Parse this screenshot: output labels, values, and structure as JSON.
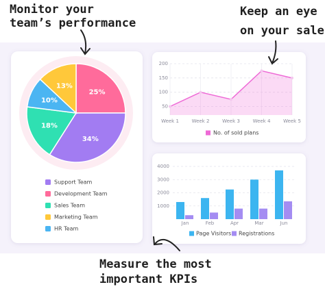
{
  "callouts": [
    {
      "lines": [
        "Monitor your",
        "team’s performance"
      ]
    },
    {
      "lines": [
        "Keep an eye",
        "on your sales"
      ]
    },
    {
      "lines": [
        "Measure the most",
        "important KPIs"
      ]
    }
  ],
  "chart_data": [
    {
      "type": "pie",
      "categories": [
        "Development Team",
        "Support Team",
        "Sales Team",
        "HR Team",
        "Marketing Team"
      ],
      "values": [
        25,
        34,
        18,
        10,
        13
      ],
      "value_labels": [
        "25%",
        "34%",
        "18%",
        "10%",
        "13%"
      ],
      "colors": [
        "#ff6b9b",
        "#a27cf2",
        "#2fe0b2",
        "#4bb5f2",
        "#ffc83a"
      ]
    },
    {
      "type": "line",
      "categories": [
        "Week 1",
        "Week 2",
        "Week 3",
        "Week 4",
        "Week 5"
      ],
      "series": [
        {
          "name": "No. of sold plans",
          "color": "#ee6ad6",
          "values": [
            50,
            100,
            75,
            175,
            150
          ]
        }
      ],
      "ylim": [
        20,
        200
      ],
      "yticks": [
        50,
        100,
        150,
        200
      ],
      "grid": true
    },
    {
      "type": "bar",
      "categories": [
        "Jan",
        "Feb",
        "Apr",
        "Mar",
        "Jun"
      ],
      "series": [
        {
          "name": "Page Visitors",
          "color": "#3cb5f0",
          "values": [
            1300,
            1600,
            2250,
            3000,
            3700
          ]
        },
        {
          "name": "Registrations",
          "color": "#a48cf2",
          "values": [
            300,
            500,
            800,
            800,
            1350
          ]
        }
      ],
      "ylim": [
        0,
        4000
      ],
      "yticks": [
        1000,
        2000,
        3000,
        4000
      ],
      "grid": true
    }
  ]
}
